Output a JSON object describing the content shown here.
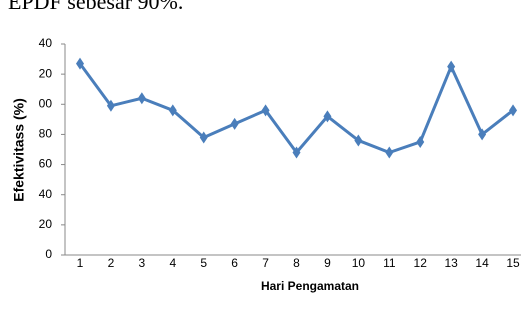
{
  "caption": "EPDF sebesar 90%.",
  "chart_data": {
    "type": "line",
    "ylabel": "Efektivitass (%)",
    "xlabel": "Hari Pengamatan",
    "categories": [
      "1",
      "2",
      "3",
      "4",
      "5",
      "6",
      "7",
      "8",
      "9",
      "10",
      "11",
      "12",
      "13",
      "14",
      "15"
    ],
    "series": [
      {
        "name": "Efektivitas",
        "color": "#4a7ebb",
        "values": [
          127,
          99,
          104,
          96,
          78,
          87,
          96,
          68,
          92,
          76,
          68,
          75,
          125,
          80,
          96
        ]
      }
    ],
    "ylim": [
      0,
      140
    ],
    "yticks": [
      0,
      20,
      40,
      60,
      80,
      {
        "value": 100,
        "label": "00"
      },
      {
        "value": 120,
        "label": "20"
      },
      {
        "value": 140,
        "label": "40"
      }
    ],
    "grid": false
  }
}
